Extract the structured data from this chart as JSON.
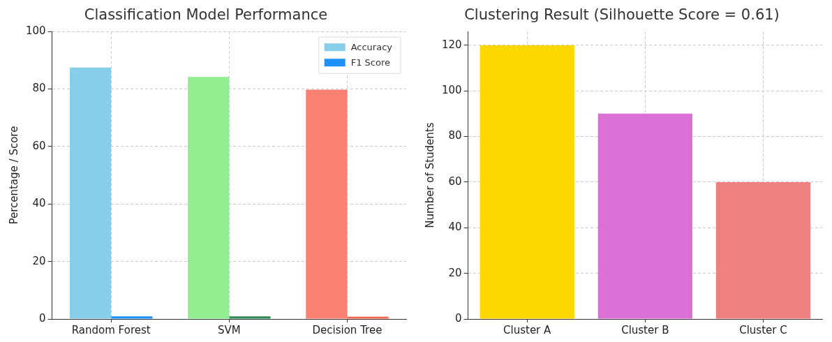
{
  "chart_data": [
    {
      "type": "bar",
      "title": "Classification Model Performance",
      "ylabel": "Percentage / Score",
      "categories": [
        "Random Forest",
        "SVM",
        "Decision Tree"
      ],
      "series": [
        {
          "name": "Accuracy",
          "color": "#87ceeb",
          "colors": [
            "#87ceeb",
            "#90ee90",
            "#fa8072"
          ],
          "values": [
            87.5,
            84.2,
            79.8
          ]
        },
        {
          "name": "F1 Score",
          "color": "#1e90ff",
          "colors": [
            "#1e90ff",
            "#2e8b57",
            "#ff6347"
          ],
          "values": [
            0.9,
            0.9,
            0.8
          ]
        }
      ],
      "ylim": [
        0,
        100
      ],
      "yticks": [
        0,
        20,
        40,
        60,
        80,
        100
      ],
      "grid": true,
      "legend": "top right"
    },
    {
      "type": "bar",
      "title": "Clustering Result (Silhouette Score = 0.61)",
      "ylabel": "Number of Students",
      "categories": [
        "Cluster A",
        "Cluster B",
        "Cluster C"
      ],
      "values": [
        120,
        90,
        60
      ],
      "colors": [
        "#ffd700",
        "#da70d6",
        "#f08080"
      ],
      "ylim": [
        0,
        126
      ],
      "yticks": [
        0,
        20,
        40,
        60,
        80,
        100,
        120
      ],
      "grid": true
    }
  ]
}
